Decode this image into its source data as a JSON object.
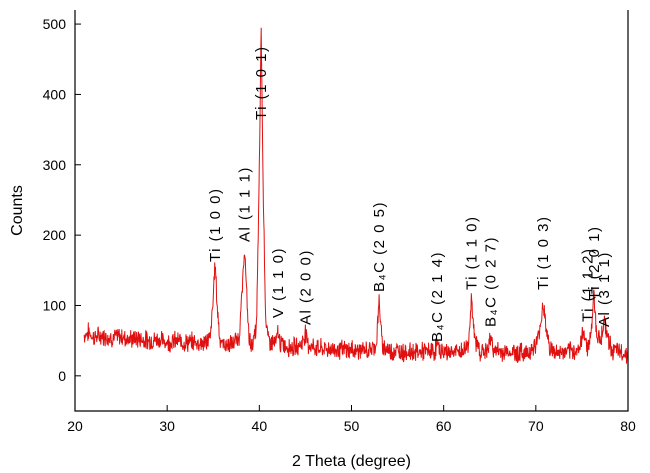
{
  "chart_data": {
    "type": "line",
    "xlabel": "2 Theta (degree)",
    "ylabel": "Counts",
    "xlim": [
      20,
      80
    ],
    "ylim": [
      -50,
      520
    ],
    "x_ticks": [
      20,
      30,
      40,
      50,
      60,
      70,
      80
    ],
    "y_ticks": [
      0,
      100,
      200,
      300,
      400,
      500
    ],
    "grid": false,
    "line_color": "#e01010",
    "series": [
      {
        "x": [
          21.0,
          21.5,
          22.0,
          23.0,
          24.0,
          25.0,
          26.0,
          27.0,
          28.0,
          29.0,
          30.0,
          31.0,
          32.0,
          33.0,
          34.0,
          34.7,
          35.0,
          35.2,
          35.4,
          35.7,
          36.0,
          37.0,
          37.8,
          38.2,
          38.4,
          38.6,
          38.9,
          39.3,
          39.7,
          40.0,
          40.2,
          40.4,
          40.7,
          41.0,
          41.8,
          42.0,
          42.3,
          43.0,
          44.0,
          44.7,
          45.0,
          45.3,
          46.0,
          47.0,
          48.0,
          49.0,
          50.0,
          51.0,
          52.0,
          52.7,
          53.0,
          53.3,
          54.0,
          55.0,
          56.0,
          57.0,
          58.0,
          59.0,
          59.3,
          59.6,
          60.0,
          61.0,
          62.0,
          62.7,
          63.0,
          63.3,
          64.0,
          64.8,
          65.1,
          65.5,
          66.0,
          67.0,
          68.0,
          69.0,
          70.0,
          70.5,
          70.8,
          71.1,
          71.5,
          72.0,
          73.0,
          74.0,
          74.8,
          75.2,
          75.6,
          76.0,
          76.3,
          76.6,
          77.0,
          77.4,
          77.8,
          78.2,
          79.0,
          80.0
        ],
        "y": [
          58,
          62,
          55,
          57,
          54,
          56,
          52,
          53,
          50,
          52,
          48,
          50,
          47,
          48,
          46,
          55,
          110,
          165,
          105,
          55,
          45,
          44,
          55,
          130,
          185,
          120,
          50,
          45,
          70,
          290,
          500,
          280,
          75,
          50,
          45,
          62,
          45,
          42,
          40,
          48,
          62,
          45,
          40,
          38,
          38,
          37,
          37,
          36,
          36,
          45,
          108,
          45,
          36,
          35,
          34,
          34,
          34,
          35,
          45,
          35,
          34,
          34,
          34,
          45,
          113,
          55,
          34,
          35,
          55,
          35,
          34,
          34,
          33,
          33,
          42,
          70,
          106,
          70,
          40,
          33,
          33,
          34,
          40,
          65,
          40,
          60,
          118,
          60,
          50,
          78,
          55,
          38,
          33,
          32
        ]
      }
    ],
    "annotations": [
      {
        "text": "Ti (1 0 0)",
        "x": 35.2
      },
      {
        "text": "Al (1 1 1)",
        "x": 38.4
      },
      {
        "text": "Ti (1 0 1)",
        "x": 40.2
      },
      {
        "text": "V (1 1 0)",
        "x": 42.0
      },
      {
        "text": "Al (2 0 0)",
        "x": 45.0
      },
      {
        "text": "B₄C (2 0 5)",
        "x": 53.0
      },
      {
        "text": "B₄C (2 1 4)",
        "x": 59.3
      },
      {
        "text": "Ti (1 1 0)",
        "x": 63.0
      },
      {
        "text": "B₄C (0 2 7)",
        "x": 65.1
      },
      {
        "text": "Ti (1 0 3)",
        "x": 70.8
      },
      {
        "text": "Ti (1 1 2)",
        "x": 75.6
      },
      {
        "text": "Ti (2 0 1)",
        "x": 76.3
      },
      {
        "text": "Al (3 1 1)",
        "x": 77.4
      }
    ]
  }
}
